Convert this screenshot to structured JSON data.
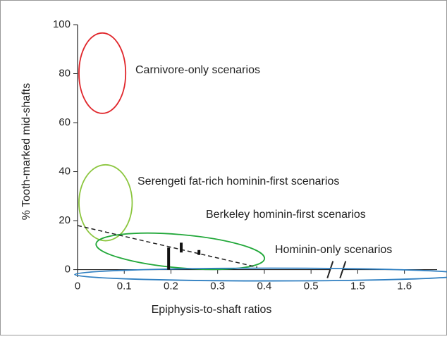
{
  "chart_data": {
    "type": "scatter",
    "xlabel": "Epiphysis-to-shaft ratios",
    "ylabel": "% Tooth-marked mid-shafts",
    "xlim": [
      0,
      1.67
    ],
    "xbreak": [
      0.55,
      1.45
    ],
    "xticks": [
      0,
      0.1,
      0.2,
      0.3,
      0.4,
      0.5,
      1.5,
      1.6
    ],
    "ylim": [
      -3,
      100
    ],
    "yticks": [
      0,
      20,
      40,
      60,
      80,
      100
    ],
    "regions": [
      {
        "name": "Carnivore-only scenarios",
        "color": "#e0262b",
        "cx": 0.053,
        "cy": 80.2,
        "rx": 0.05,
        "ry": 16.4,
        "angle": 0
      },
      {
        "name": "Serengeti fat-rich hominin-first scenarios",
        "color": "#8cc63f",
        "cx": 0.06,
        "cy": 27.3,
        "rx": 0.057,
        "ry": 15.5,
        "angle": 0
      },
      {
        "name": "Berkeley hominin-first scenarios",
        "color": "#22a83a",
        "cx": 0.22,
        "cy": 7.5,
        "rx": 0.181,
        "ry": 6.8,
        "angle": 5
      },
      {
        "name": "Hominin-only scenarios",
        "color": "#2f7fc1",
        "cx": 0.414,
        "cy": -2,
        "rx": 0.42,
        "ry": 2.6,
        "angle": 0
      }
    ],
    "trend": {
      "x": [
        0,
        0.385
      ],
      "y": [
        18,
        1
      ]
    },
    "bars": [
      {
        "x": 0.195,
        "y0": 0,
        "y1": 9
      },
      {
        "x": 0.222,
        "y0": 7,
        "y1": 11
      },
      {
        "x": 0.26,
        "y0": 6,
        "y1": 8
      }
    ]
  }
}
